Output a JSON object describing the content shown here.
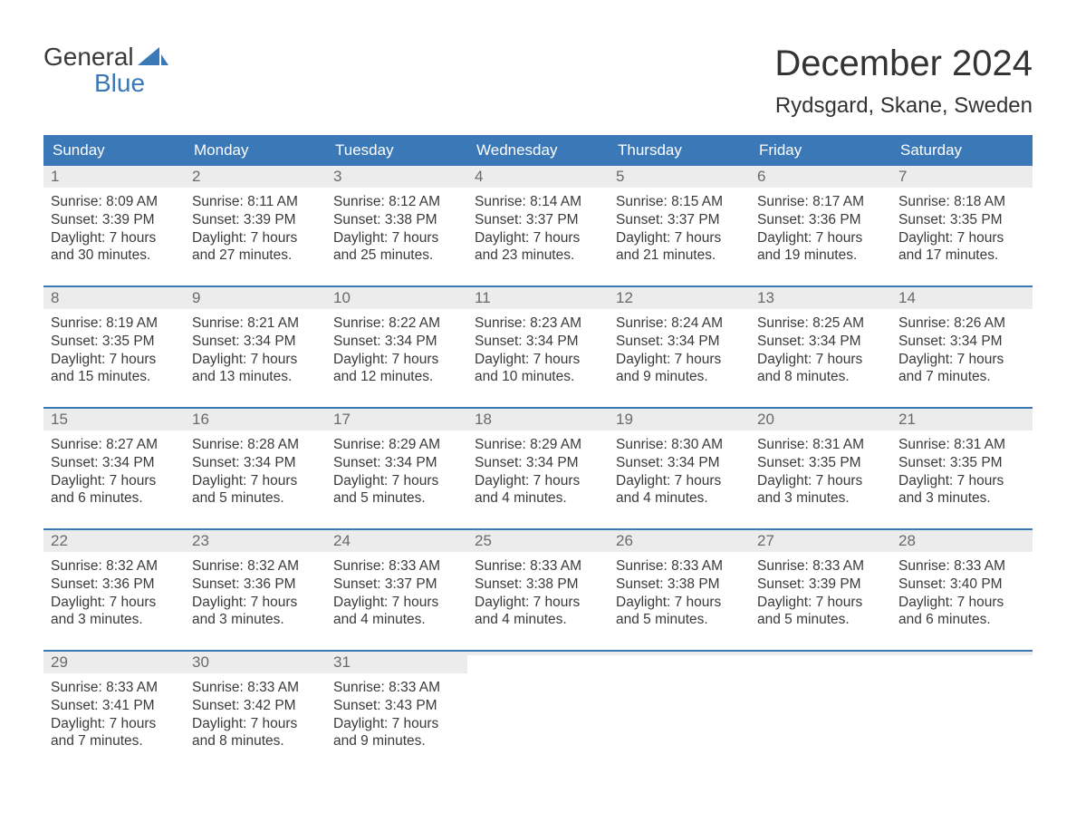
{
  "brand": {
    "word1": "General",
    "word2": "Blue"
  },
  "title": "December 2024",
  "subtitle": "Rydsgard, Skane, Sweden",
  "colors": {
    "header_bg": "#3b78b8",
    "header_text": "#ffffff",
    "daynum_bg": "#ececec",
    "daynum_text": "#6a6a6a",
    "body_text": "#3a3a3a",
    "rule": "#3b78b8"
  },
  "fontsize": {
    "title": 40,
    "subtitle": 24,
    "dow": 17,
    "daynum": 17,
    "body": 15.5
  },
  "dow": [
    "Sunday",
    "Monday",
    "Tuesday",
    "Wednesday",
    "Thursday",
    "Friday",
    "Saturday"
  ],
  "weeks": [
    [
      {
        "n": "1",
        "sr": "8:09 AM",
        "ss": "3:39 PM",
        "dl": "7 hours and 30 minutes."
      },
      {
        "n": "2",
        "sr": "8:11 AM",
        "ss": "3:39 PM",
        "dl": "7 hours and 27 minutes."
      },
      {
        "n": "3",
        "sr": "8:12 AM",
        "ss": "3:38 PM",
        "dl": "7 hours and 25 minutes."
      },
      {
        "n": "4",
        "sr": "8:14 AM",
        "ss": "3:37 PM",
        "dl": "7 hours and 23 minutes."
      },
      {
        "n": "5",
        "sr": "8:15 AM",
        "ss": "3:37 PM",
        "dl": "7 hours and 21 minutes."
      },
      {
        "n": "6",
        "sr": "8:17 AM",
        "ss": "3:36 PM",
        "dl": "7 hours and 19 minutes."
      },
      {
        "n": "7",
        "sr": "8:18 AM",
        "ss": "3:35 PM",
        "dl": "7 hours and 17 minutes."
      }
    ],
    [
      {
        "n": "8",
        "sr": "8:19 AM",
        "ss": "3:35 PM",
        "dl": "7 hours and 15 minutes."
      },
      {
        "n": "9",
        "sr": "8:21 AM",
        "ss": "3:34 PM",
        "dl": "7 hours and 13 minutes."
      },
      {
        "n": "10",
        "sr": "8:22 AM",
        "ss": "3:34 PM",
        "dl": "7 hours and 12 minutes."
      },
      {
        "n": "11",
        "sr": "8:23 AM",
        "ss": "3:34 PM",
        "dl": "7 hours and 10 minutes."
      },
      {
        "n": "12",
        "sr": "8:24 AM",
        "ss": "3:34 PM",
        "dl": "7 hours and 9 minutes."
      },
      {
        "n": "13",
        "sr": "8:25 AM",
        "ss": "3:34 PM",
        "dl": "7 hours and 8 minutes."
      },
      {
        "n": "14",
        "sr": "8:26 AM",
        "ss": "3:34 PM",
        "dl": "7 hours and 7 minutes."
      }
    ],
    [
      {
        "n": "15",
        "sr": "8:27 AM",
        "ss": "3:34 PM",
        "dl": "7 hours and 6 minutes."
      },
      {
        "n": "16",
        "sr": "8:28 AM",
        "ss": "3:34 PM",
        "dl": "7 hours and 5 minutes."
      },
      {
        "n": "17",
        "sr": "8:29 AM",
        "ss": "3:34 PM",
        "dl": "7 hours and 5 minutes."
      },
      {
        "n": "18",
        "sr": "8:29 AM",
        "ss": "3:34 PM",
        "dl": "7 hours and 4 minutes."
      },
      {
        "n": "19",
        "sr": "8:30 AM",
        "ss": "3:34 PM",
        "dl": "7 hours and 4 minutes."
      },
      {
        "n": "20",
        "sr": "8:31 AM",
        "ss": "3:35 PM",
        "dl": "7 hours and 3 minutes."
      },
      {
        "n": "21",
        "sr": "8:31 AM",
        "ss": "3:35 PM",
        "dl": "7 hours and 3 minutes."
      }
    ],
    [
      {
        "n": "22",
        "sr": "8:32 AM",
        "ss": "3:36 PM",
        "dl": "7 hours and 3 minutes."
      },
      {
        "n": "23",
        "sr": "8:32 AM",
        "ss": "3:36 PM",
        "dl": "7 hours and 3 minutes."
      },
      {
        "n": "24",
        "sr": "8:33 AM",
        "ss": "3:37 PM",
        "dl": "7 hours and 4 minutes."
      },
      {
        "n": "25",
        "sr": "8:33 AM",
        "ss": "3:38 PM",
        "dl": "7 hours and 4 minutes."
      },
      {
        "n": "26",
        "sr": "8:33 AM",
        "ss": "3:38 PM",
        "dl": "7 hours and 5 minutes."
      },
      {
        "n": "27",
        "sr": "8:33 AM",
        "ss": "3:39 PM",
        "dl": "7 hours and 5 minutes."
      },
      {
        "n": "28",
        "sr": "8:33 AM",
        "ss": "3:40 PM",
        "dl": "7 hours and 6 minutes."
      }
    ],
    [
      {
        "n": "29",
        "sr": "8:33 AM",
        "ss": "3:41 PM",
        "dl": "7 hours and 7 minutes."
      },
      {
        "n": "30",
        "sr": "8:33 AM",
        "ss": "3:42 PM",
        "dl": "7 hours and 8 minutes."
      },
      {
        "n": "31",
        "sr": "8:33 AM",
        "ss": "3:43 PM",
        "dl": "7 hours and 9 minutes."
      },
      {
        "n": "",
        "sr": "",
        "ss": "",
        "dl": ""
      },
      {
        "n": "",
        "sr": "",
        "ss": "",
        "dl": ""
      },
      {
        "n": "",
        "sr": "",
        "ss": "",
        "dl": ""
      },
      {
        "n": "",
        "sr": "",
        "ss": "",
        "dl": ""
      }
    ]
  ],
  "labels": {
    "sunrise": "Sunrise: ",
    "sunset": "Sunset: ",
    "daylight": "Daylight: "
  }
}
